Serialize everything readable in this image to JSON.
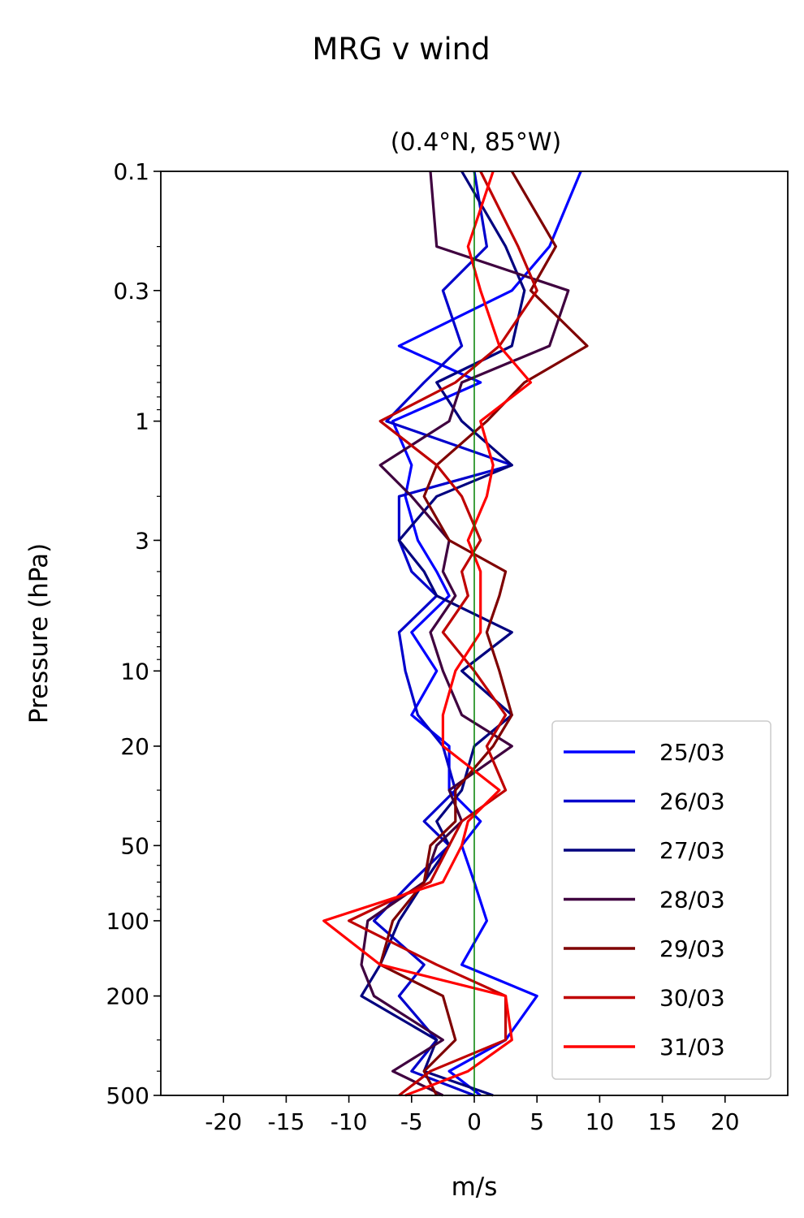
{
  "chart_data": {
    "type": "line",
    "suptitle": "MRG v wind",
    "title": "(0.4°N, 85°W)",
    "xlabel": "m/s",
    "ylabel": "Pressure (hPa)",
    "xlim": [
      -25,
      25
    ],
    "ylim": [
      500,
      0.1
    ],
    "y_scale": "log",
    "x_ticks": [
      -20,
      -15,
      -10,
      -5,
      0,
      5,
      10,
      15,
      20
    ],
    "x_tick_labels": [
      "-20",
      "-15",
      "-10",
      "-5",
      "0",
      "5",
      "10",
      "15",
      "20"
    ],
    "y_ticks": [
      0.1,
      0.3,
      1,
      3,
      10,
      20,
      50,
      100,
      200,
      500
    ],
    "y_tick_labels": [
      "0.1",
      "0.3",
      "1",
      "3",
      "10",
      "20",
      "50",
      "100",
      "200",
      "500"
    ],
    "zero_line": {
      "x": 0,
      "color": "#008000"
    },
    "legend_position": "lower-right",
    "pressure_levels": [
      0.1,
      0.2,
      0.3,
      0.5,
      0.7,
      1,
      1.5,
      2,
      3,
      4,
      5,
      7,
      10,
      15,
      20,
      30,
      40,
      50,
      70,
      100,
      150,
      200,
      300,
      400,
      500
    ],
    "series": [
      {
        "name": "25/03",
        "color": "#0000ff",
        "values": [
          8.5,
          6.0,
          3.0,
          -6.0,
          0.5,
          -6.5,
          -5.0,
          -5.5,
          -4.5,
          -3.0,
          -2.0,
          -5.0,
          -3.0,
          -5.0,
          -2.0,
          -2.0,
          0.5,
          -1.0,
          0.0,
          1.0,
          -1.0,
          5.0,
          2.5,
          -2.0,
          0.5
        ]
      },
      {
        "name": "26/03",
        "color": "#0000cc",
        "values": [
          0.0,
          1.0,
          -2.5,
          -1.0,
          -4.0,
          -7.0,
          3.0,
          -6.0,
          -6.0,
          -5.0,
          -3.0,
          -6.0,
          -5.5,
          -4.5,
          -2.5,
          -1.5,
          -4.0,
          -2.0,
          -5.0,
          -8.0,
          -4.0,
          -6.0,
          -3.0,
          -5.0,
          0.0
        ]
      },
      {
        "name": "27/03",
        "color": "#00007f",
        "values": [
          -1.0,
          2.5,
          4.0,
          3.0,
          -3.0,
          -1.0,
          3.0,
          -3.0,
          -6.0,
          -4.0,
          -3.0,
          3.0,
          -1.0,
          3.0,
          0.0,
          -1.0,
          -3.0,
          -2.0,
          -4.0,
          -6.0,
          -7.5,
          -9.0,
          -3.0,
          -4.0,
          1.5
        ]
      },
      {
        "name": "28/03",
        "color": "#3f003f",
        "values": [
          -3.5,
          -3.0,
          7.5,
          6.0,
          -1.0,
          -2.0,
          -7.5,
          -5.0,
          -2.0,
          -2.5,
          -1.5,
          -3.5,
          -2.5,
          -1.0,
          3.0,
          -2.0,
          -1.0,
          -3.0,
          -4.0,
          -8.5,
          -9.0,
          -8.0,
          -2.5,
          -6.5,
          -2.5
        ]
      },
      {
        "name": "29/03",
        "color": "#7f0000",
        "values": [
          3.0,
          6.5,
          4.5,
          9.0,
          4.0,
          1.0,
          -3.0,
          -4.0,
          -2.0,
          2.5,
          2.0,
          1.0,
          2.0,
          3.0,
          1.5,
          -1.5,
          -1.5,
          -3.5,
          -4.0,
          -6.5,
          -7.5,
          -2.5,
          -1.5,
          -4.0,
          -3.0
        ]
      },
      {
        "name": "30/03",
        "color": "#bf0000",
        "values": [
          0.5,
          3.5,
          5.0,
          2.0,
          -1.5,
          -7.5,
          -3.0,
          -1.0,
          0.5,
          -1.0,
          -0.5,
          -2.5,
          0.0,
          2.5,
          1.0,
          2.5,
          -1.0,
          -2.0,
          -3.5,
          -10.0,
          -3.0,
          2.5,
          2.5,
          -3.5,
          -6.0
        ]
      },
      {
        "name": "31/03",
        "color": "#ff0000",
        "values": [
          1.5,
          -0.5,
          0.5,
          2.0,
          4.5,
          0.5,
          1.5,
          1.0,
          -0.5,
          0.5,
          0.5,
          0.5,
          -1.5,
          -2.5,
          -2.5,
          2.0,
          -0.5,
          -1.0,
          -2.5,
          -12.0,
          -7.5,
          2.5,
          3.0,
          -0.5,
          -5.5
        ]
      }
    ]
  }
}
